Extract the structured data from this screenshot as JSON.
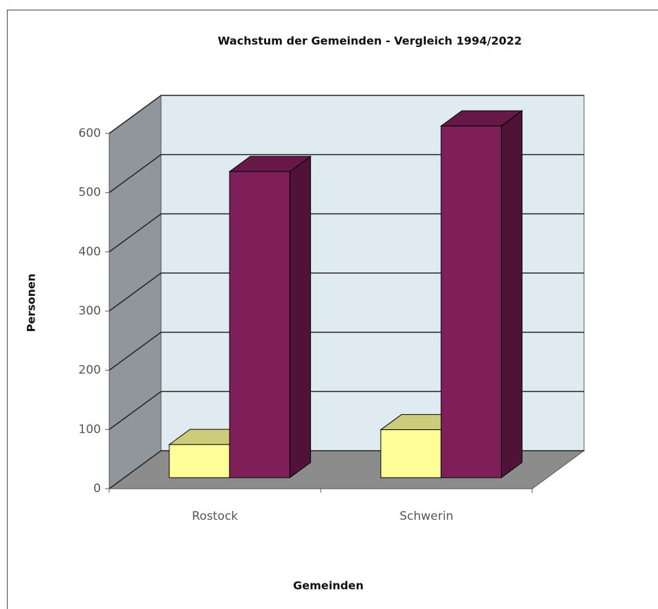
{
  "chart_data": {
    "type": "bar3d",
    "title": "Wachstum der Gemeinden - Vergleich 1994/2022",
    "x_label": "Gemeinden",
    "y_label": "Personen",
    "categories": [
      "Rostock",
      "Schwerin"
    ],
    "series": [
      {
        "color": "#ffff99",
        "values": [
          56,
          81
        ]
      },
      {
        "color": "#7f1f5a",
        "values": [
          517,
          594
        ]
      }
    ],
    "ylim": [
      0,
      600
    ],
    "yticks": [
      0,
      100,
      200,
      300,
      400,
      500,
      600
    ],
    "grid": true
  }
}
